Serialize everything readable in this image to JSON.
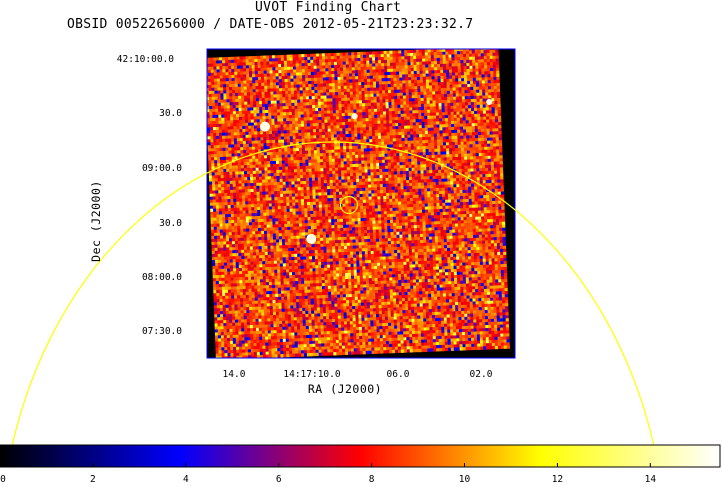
{
  "header": {
    "title": "UVOT Finding Chart",
    "subtitle": "OBSID 00522656000 / DATE-OBS 2012-05-21T23:23:32.7"
  },
  "chart_data": {
    "type": "heatmap",
    "title": "UVOT Finding Chart",
    "subtitle": "OBSID 00522656000 / DATE-OBS 2012-05-21T23:23:32.7",
    "xlabel": "RA (J2000)",
    "ylabel": "Dec (J2000)",
    "x_ticks": [
      "14.0",
      "14:17:10.0",
      "06.0",
      "02.0"
    ],
    "y_ticks": [
      "42:10:00.0",
      "30.0",
      "09:00.0",
      "30.0",
      "08:00.0",
      "07:30.0"
    ],
    "colorbar": {
      "min": 0,
      "max": 15.5,
      "ticks": [
        0,
        2,
        4,
        6,
        8,
        10,
        12,
        14
      ],
      "tick_labels": [
        "0",
        "2",
        "4",
        "6",
        "8",
        "10",
        "12",
        "14"
      ],
      "colormap": [
        "#000000",
        "#0000ff",
        "#ff0000",
        "#ffff00",
        "#ffffff"
      ]
    },
    "image": {
      "typical_value_range": [
        6,
        10
      ],
      "sources": [
        {
          "name": "target-circle",
          "marker": "circle",
          "color": "#ffff00"
        },
        {
          "name": "bright-star-1",
          "marker": "none"
        },
        {
          "name": "bright-star-2",
          "marker": "none"
        }
      ]
    },
    "overlays": [
      {
        "name": "field-of-view-arc",
        "color": "#ffff00"
      },
      {
        "name": "image-border",
        "color": "#0000ff"
      }
    ],
    "grid": false,
    "legend": "colorbar-bottom"
  }
}
